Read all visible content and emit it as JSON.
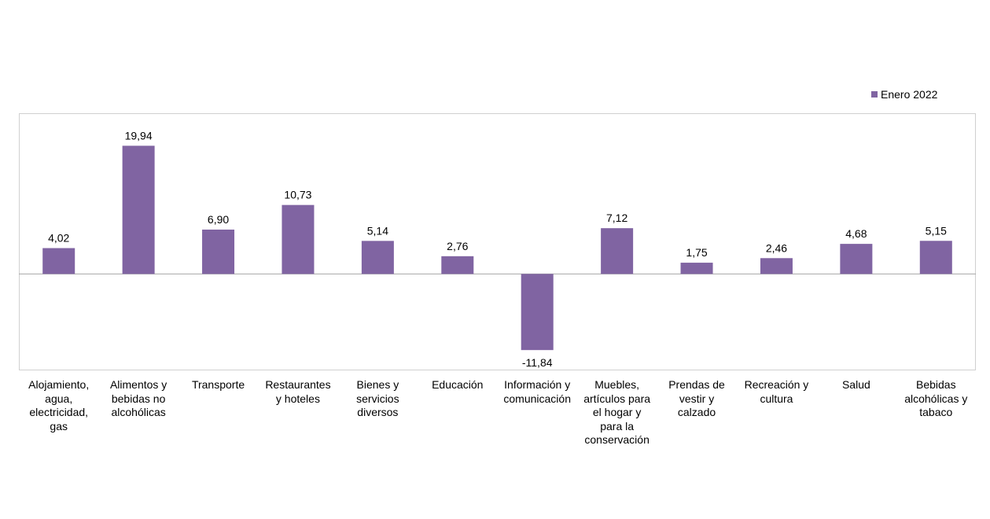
{
  "chart_data": {
    "type": "bar",
    "categories": [
      "Alojamiento,\nagua,\nelectricidad,\ngas",
      "Alimentos y\nbebidas no\nalcohólicas",
      "Transporte",
      "Restaurantes\ny hoteles",
      "Bienes y\nservicios\ndiversos",
      "Educación",
      "Información y\ncomunicación",
      "Muebles,\nartículos para\nel hogar y\npara la\nconservación",
      "Prendas de\nvestir y\ncalzado",
      "Recreación y\ncultura",
      "Salud",
      "Bebidas\nalcohólicas y\ntabaco"
    ],
    "series": [
      {
        "name": "Enero 2022",
        "values": [
          4.02,
          19.94,
          6.9,
          10.73,
          5.14,
          2.76,
          -11.84,
          7.12,
          1.75,
          2.46,
          4.68,
          5.15
        ],
        "data_labels": [
          "4,02",
          "19,94",
          "6,90",
          "10,73",
          "5,14",
          "2,76",
          "-11,84",
          "7,12",
          "1,75",
          "2,46",
          "4,68",
          "5,15"
        ]
      }
    ],
    "ylim": [
      -15,
      25
    ],
    "grid": false,
    "legend_position": "top-right",
    "colors": {
      "bar": "#8064a2",
      "zero_line": "#a6a6a6",
      "border": "#d0d0d0"
    }
  }
}
